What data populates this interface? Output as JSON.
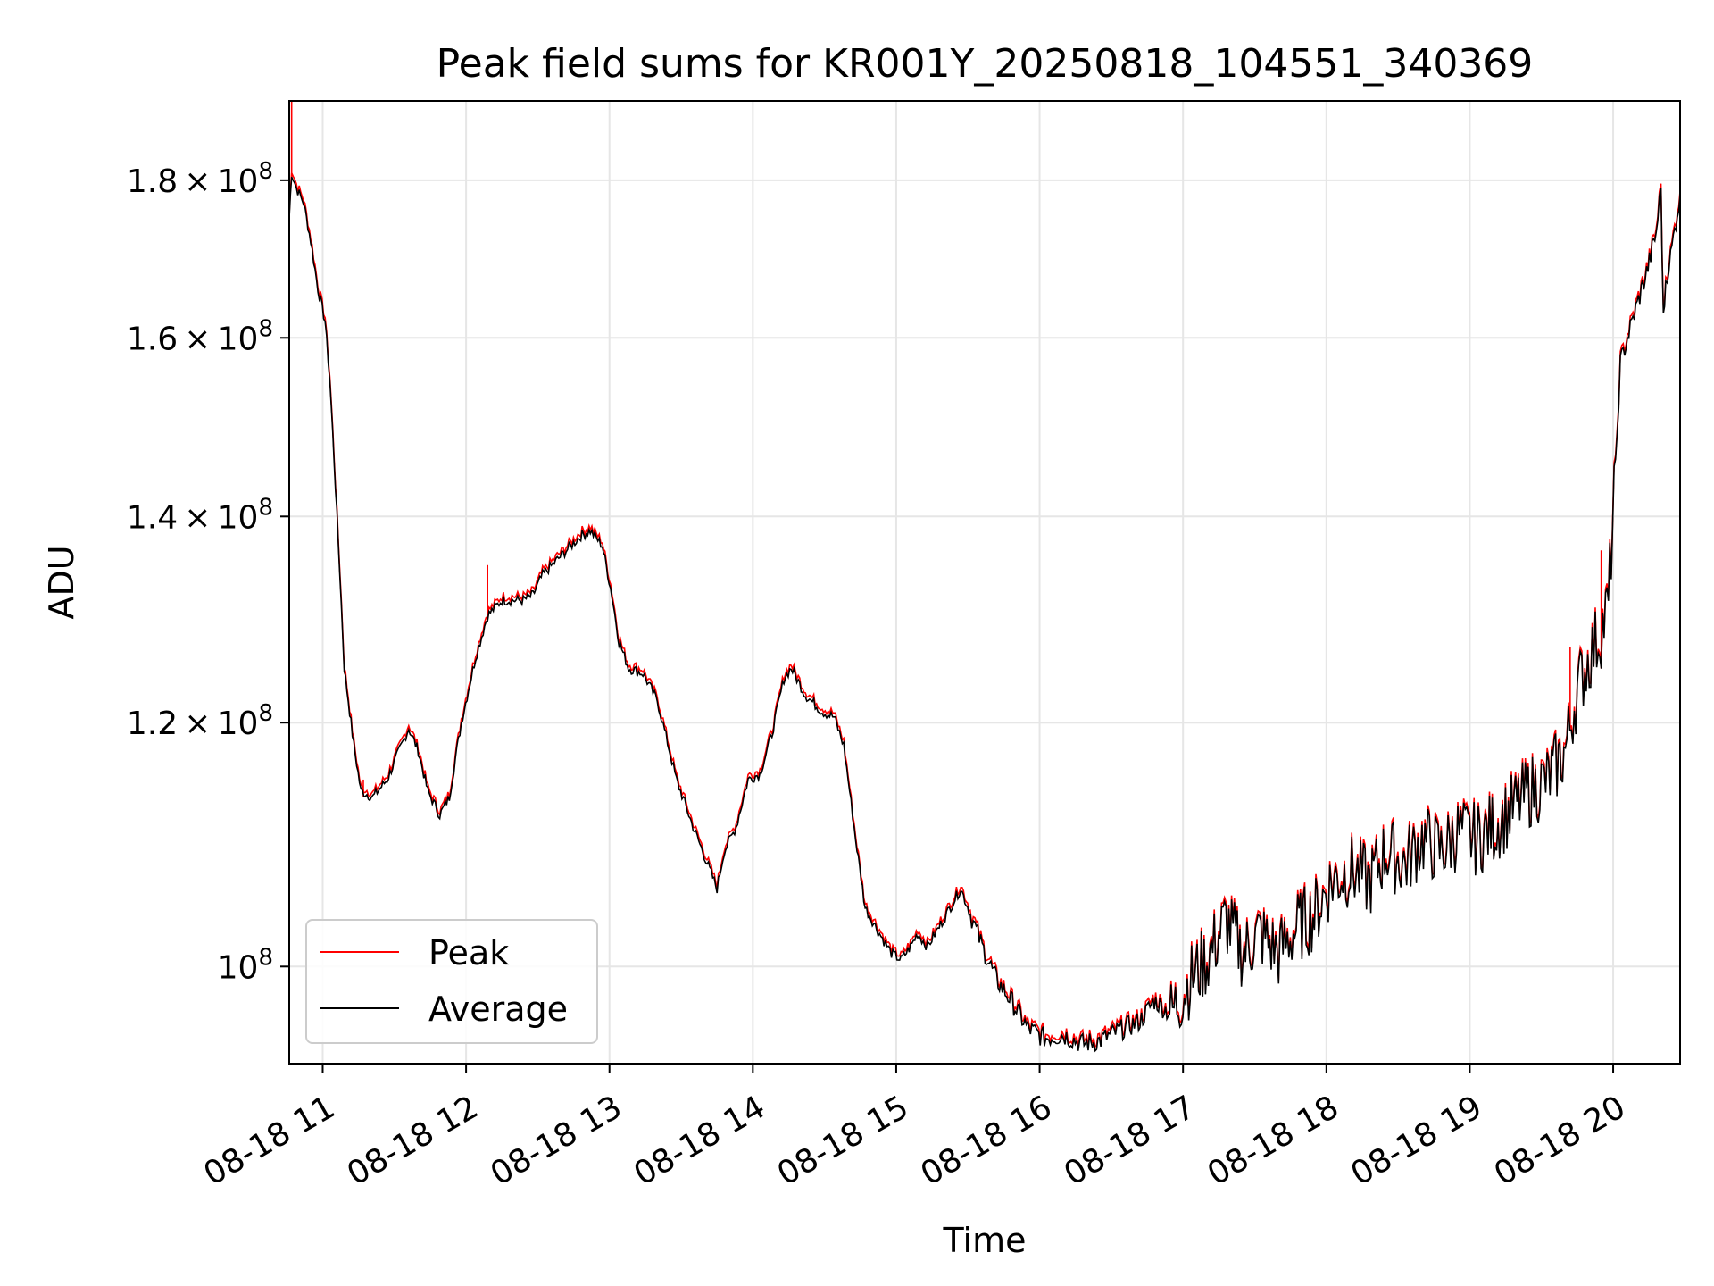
{
  "chart_data": {
    "type": "line",
    "title": "Peak field sums for KR001Y_20250818_104551_340369",
    "xlabel": "Time",
    "ylabel": "ADU",
    "yscale": "log",
    "xlim": [
      "08-18 10:46",
      "08-18 20:28"
    ],
    "ylim": [
      93000000,
      191000000
    ],
    "x_ticks": [
      "08-18 11",
      "08-18 12",
      "08-18 13",
      "08-18 14",
      "08-18 15",
      "08-18 16",
      "08-18 17",
      "08-18 18",
      "08-18 19",
      "08-18 20"
    ],
    "y_ticks": [
      {
        "value": 100000000,
        "mantissa": "",
        "exponent": "8"
      },
      {
        "value": 120000000,
        "mantissa": "1.2",
        "exponent": "8"
      },
      {
        "value": 140000000,
        "mantissa": "1.4",
        "exponent": "8"
      },
      {
        "value": 160000000,
        "mantissa": "1.6",
        "exponent": "8"
      },
      {
        "value": 180000000,
        "mantissa": "1.8",
        "exponent": "8"
      }
    ],
    "grid": true,
    "legend_position": "lower-left",
    "series": [
      {
        "name": "Peak",
        "color": "#ff0000",
        "spikes": [
          {
            "x": "08-18 10:47",
            "y": 191000000
          },
          {
            "x": "08-18 11:17",
            "y": 115000000
          },
          {
            "x": "08-18 12:09",
            "y": 135000000
          },
          {
            "x": "08-18 19:42",
            "y": 127000000
          },
          {
            "x": "08-18 19:55",
            "y": 136500000
          }
        ]
      },
      {
        "name": "Average",
        "color": "#000000",
        "points": [
          [
            "08-18 10:46",
            175000000
          ],
          [
            "08-18 10:47",
            181000000
          ],
          [
            "08-18 10:49",
            179000000
          ],
          [
            "08-18 10:52",
            177000000
          ],
          [
            "08-18 10:55",
            172000000
          ],
          [
            "08-18 10:58",
            166000000
          ],
          [
            "08-18 11:01",
            162000000
          ],
          [
            "08-18 11:03",
            155000000
          ],
          [
            "08-18 11:06",
            140000000
          ],
          [
            "08-18 11:09",
            125000000
          ],
          [
            "08-18 11:13",
            118000000
          ],
          [
            "08-18 11:16",
            114000000
          ],
          [
            "08-18 11:21",
            113500000
          ],
          [
            "08-18 11:27",
            115000000
          ],
          [
            "08-18 11:31",
            117000000
          ],
          [
            "08-18 11:36",
            119500000
          ],
          [
            "08-18 11:40",
            117500000
          ],
          [
            "08-18 11:44",
            114000000
          ],
          [
            "08-18 11:49",
            112000000
          ],
          [
            "08-18 11:53",
            113500000
          ],
          [
            "08-18 11:58",
            120000000
          ],
          [
            "08-18 12:04",
            126000000
          ],
          [
            "08-18 12:09",
            130000000
          ],
          [
            "08-18 12:15",
            131500000
          ],
          [
            "08-18 12:24",
            131500000
          ],
          [
            "08-18 12:28",
            132000000
          ],
          [
            "08-18 12:32",
            134000000
          ],
          [
            "08-18 12:40",
            136000000
          ],
          [
            "08-18 12:48",
            138000000
          ],
          [
            "08-18 12:52",
            138500000
          ],
          [
            "08-18 12:57",
            137000000
          ],
          [
            "08-18 13:01",
            132000000
          ],
          [
            "08-18 13:04",
            127500000
          ],
          [
            "08-18 13:08",
            125000000
          ],
          [
            "08-18 13:14",
            124500000
          ],
          [
            "08-18 13:20",
            122000000
          ],
          [
            "08-18 13:28",
            115000000
          ],
          [
            "08-18 13:35",
            111000000
          ],
          [
            "08-18 13:42",
            107500000
          ],
          [
            "08-18 13:45",
            106000000
          ],
          [
            "08-18 13:48",
            109000000
          ],
          [
            "08-18 13:53",
            111000000
          ],
          [
            "08-18 13:58",
            115000000
          ],
          [
            "08-18 14:03",
            115500000
          ],
          [
            "08-18 14:08",
            119000000
          ],
          [
            "08-18 14:13",
            124000000
          ],
          [
            "08-18 14:16",
            125000000
          ],
          [
            "08-18 14:22",
            122500000
          ],
          [
            "08-18 14:29",
            121000000
          ],
          [
            "08-18 14:34",
            120500000
          ],
          [
            "08-18 14:38",
            118000000
          ],
          [
            "08-18 14:43",
            110000000
          ],
          [
            "08-18 14:47",
            104500000
          ],
          [
            "08-18 14:53",
            102500000
          ],
          [
            "08-18 14:58",
            101000000
          ],
          [
            "08-18 15:02",
            100500000
          ],
          [
            "08-18 15:06",
            101500000
          ],
          [
            "08-18 15:09",
            102500000
          ],
          [
            "08-18 15:13",
            101500000
          ],
          [
            "08-18 15:18",
            103000000
          ],
          [
            "08-18 15:24",
            105000000
          ],
          [
            "08-18 15:27",
            106000000
          ],
          [
            "08-18 15:31",
            104000000
          ],
          [
            "08-18 15:36",
            101500000
          ],
          [
            "08-18 15:42",
            99000000
          ],
          [
            "08-18 15:48",
            97500000
          ],
          [
            "08-18 15:55",
            95500000
          ],
          [
            "08-18 16:02",
            94800000
          ],
          [
            "08-18 16:10",
            95000000
          ],
          [
            "08-18 16:18",
            94400000
          ],
          [
            "08-18 16:25",
            94600000
          ],
          [
            "08-18 16:33",
            95300000
          ],
          [
            "08-18 16:42",
            96000000
          ],
          [
            "08-18 16:48",
            97500000
          ],
          [
            "08-18 16:55",
            96500000
          ],
          [
            "08-18 17:03",
            99000000
          ],
          [
            "08-18 17:10",
            100500000
          ],
          [
            "08-18 17:18",
            103500000
          ],
          [
            "08-18 17:25",
            101000000
          ],
          [
            "08-18 17:32",
            102500000
          ],
          [
            "08-18 17:40",
            101000000
          ],
          [
            "08-18 17:48",
            103000000
          ],
          [
            "08-18 17:55",
            104000000
          ],
          [
            "08-18 18:02",
            106500000
          ],
          [
            "08-18 18:10",
            107500000
          ],
          [
            "08-18 18:18",
            106500000
          ],
          [
            "08-18 18:25",
            109000000
          ],
          [
            "08-18 18:33",
            108000000
          ],
          [
            "08-18 18:40",
            110000000
          ],
          [
            "08-18 18:48",
            109000000
          ],
          [
            "08-18 18:55",
            110500000
          ],
          [
            "08-18 19:03",
            110000000
          ],
          [
            "08-18 19:10",
            111000000
          ],
          [
            "08-18 19:18",
            112500000
          ],
          [
            "08-18 19:25",
            114000000
          ],
          [
            "08-18 19:33",
            115000000
          ],
          [
            "08-18 19:40",
            117500000
          ],
          [
            "08-18 19:45",
            123000000
          ],
          [
            "08-18 19:50",
            126000000
          ],
          [
            "08-18 19:55",
            128500000
          ],
          [
            "08-18 19:58",
            131000000
          ],
          [
            "08-18 20:01",
            145000000
          ],
          [
            "08-18 20:03",
            157000000
          ],
          [
            "08-18 20:06",
            160000000
          ],
          [
            "08-18 20:10",
            164000000
          ],
          [
            "08-18 20:14",
            168000000
          ],
          [
            "08-18 20:18",
            173000000
          ],
          [
            "08-18 20:20",
            179000000
          ],
          [
            "08-18 20:21",
            162000000
          ],
          [
            "08-18 20:22",
            167000000
          ],
          [
            "08-18 20:24",
            170000000
          ],
          [
            "08-18 20:28",
            178000000
          ]
        ]
      }
    ]
  }
}
